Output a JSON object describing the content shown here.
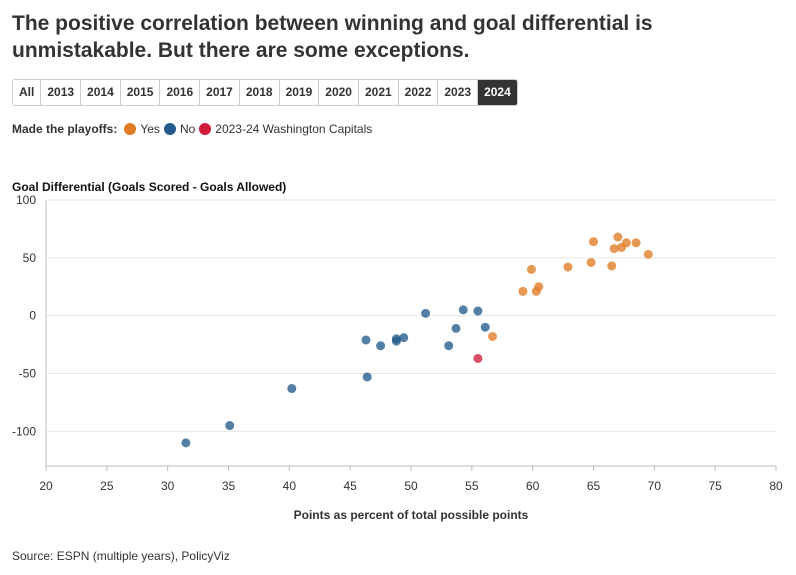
{
  "header": {
    "title": "The positive correlation between winning and goal differential is unmistakable. But there are some exceptions."
  },
  "tabs": [
    {
      "label": "All",
      "active": false
    },
    {
      "label": "2013",
      "active": false
    },
    {
      "label": "2014",
      "active": false
    },
    {
      "label": "2015",
      "active": false
    },
    {
      "label": "2016",
      "active": false
    },
    {
      "label": "2017",
      "active": false
    },
    {
      "label": "2018",
      "active": false
    },
    {
      "label": "2019",
      "active": false
    },
    {
      "label": "2020",
      "active": false
    },
    {
      "label": "2021",
      "active": false
    },
    {
      "label": "2022",
      "active": false
    },
    {
      "label": "2023",
      "active": false
    },
    {
      "label": "2024",
      "active": true
    }
  ],
  "legend": {
    "title": "Made the playoffs:",
    "items": [
      {
        "label": "Yes",
        "color": "#e07b24"
      },
      {
        "label": "No",
        "color": "#245b8c"
      },
      {
        "label": "2023-24 Washington Capitals",
        "color": "#d01c3a"
      }
    ]
  },
  "footer": {
    "source": "Source: ESPN (multiple years), PolicyViz"
  },
  "chart_data": {
    "type": "scatter",
    "title": "The positive correlation between winning and goal differential is unmistakable. But there are some exceptions.",
    "xlabel": "Points as percent of total possible points",
    "ylabel": "Goal Differential (Goals Scored - Goals Allowed)",
    "xlim": [
      20,
      80
    ],
    "ylim": [
      -130,
      100
    ],
    "xticks": [
      20,
      25,
      30,
      35,
      40,
      45,
      50,
      55,
      60,
      65,
      70,
      75,
      80
    ],
    "yticks": [
      100,
      50,
      0,
      -50,
      -100
    ],
    "grid": "horizontal",
    "series": [
      {
        "name": "Yes",
        "color": "#e07b24",
        "points": [
          {
            "x": 59.2,
            "y": 21
          },
          {
            "x": 59.9,
            "y": 40
          },
          {
            "x": 60.3,
            "y": 21
          },
          {
            "x": 60.5,
            "y": 25
          },
          {
            "x": 62.9,
            "y": 42
          },
          {
            "x": 64.8,
            "y": 46
          },
          {
            "x": 65.0,
            "y": 64
          },
          {
            "x": 66.5,
            "y": 43
          },
          {
            "x": 66.7,
            "y": 58
          },
          {
            "x": 67.0,
            "y": 68
          },
          {
            "x": 67.3,
            "y": 59
          },
          {
            "x": 67.7,
            "y": 63
          },
          {
            "x": 68.5,
            "y": 63
          },
          {
            "x": 69.5,
            "y": 53
          },
          {
            "x": 56.7,
            "y": -18
          }
        ]
      },
      {
        "name": "No",
        "color": "#245b8c",
        "points": [
          {
            "x": 31.5,
            "y": -110
          },
          {
            "x": 35.1,
            "y": -95
          },
          {
            "x": 40.2,
            "y": -63
          },
          {
            "x": 46.3,
            "y": -21
          },
          {
            "x": 46.4,
            "y": -53
          },
          {
            "x": 47.5,
            "y": -26
          },
          {
            "x": 48.8,
            "y": -22
          },
          {
            "x": 48.8,
            "y": -20
          },
          {
            "x": 49.4,
            "y": -19
          },
          {
            "x": 51.2,
            "y": 2
          },
          {
            "x": 53.1,
            "y": -26
          },
          {
            "x": 53.7,
            "y": -11
          },
          {
            "x": 54.3,
            "y": 5
          },
          {
            "x": 55.5,
            "y": 4
          },
          {
            "x": 56.1,
            "y": -10
          }
        ]
      },
      {
        "name": "2023-24 Washington Capitals",
        "color": "#d01c3a",
        "points": [
          {
            "x": 55.5,
            "y": -37
          }
        ]
      }
    ]
  }
}
